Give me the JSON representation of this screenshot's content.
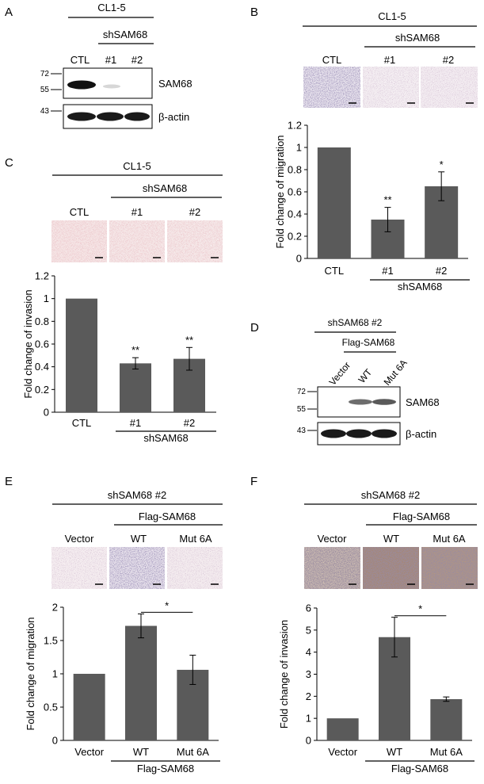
{
  "panelA": {
    "letter": "A",
    "cell_line": "CL1-5",
    "group": "shSAM68",
    "lanes": [
      "CTL",
      "#1",
      "#2"
    ],
    "markers_top": [
      "72",
      "55"
    ],
    "marker_bottom": "43",
    "protein_top": "SAM68",
    "protein_bottom": "β-actin"
  },
  "panelB": {
    "letter": "B",
    "cell_line": "CL1-5",
    "group": "shSAM68",
    "image_labels": [
      "CTL",
      "#1",
      "#2"
    ]
  },
  "panelC": {
    "letter": "C",
    "cell_line": "CL1-5",
    "group": "shSAM68",
    "image_labels": [
      "CTL",
      "#1",
      "#2"
    ]
  },
  "panelD": {
    "letter": "D",
    "group": "shSAM68 #2",
    "subgroup": "Flag-SAM68",
    "lanes": [
      "Vector",
      "WT",
      "Mut 6A"
    ],
    "markers_top": [
      "72",
      "55"
    ],
    "marker_bottom": "43",
    "protein_top": "SAM68",
    "protein_bottom": "β-actin"
  },
  "panelE": {
    "letter": "E",
    "group": "shSAM68 #2",
    "subgroup": "Flag-SAM68",
    "image_labels": [
      "Vector",
      "WT",
      "Mut 6A"
    ]
  },
  "panelF": {
    "letter": "F",
    "group": "shSAM68 #2",
    "subgroup": "Flag-SAM68",
    "image_labels": [
      "Vector",
      "WT",
      "Mut 6A"
    ]
  },
  "chart_data": [
    {
      "panel": "B",
      "type": "bar",
      "categories": [
        "CTL",
        "#1",
        "#2"
      ],
      "values": [
        1.0,
        0.35,
        0.65
      ],
      "errors": [
        0,
        0.11,
        0.13
      ],
      "significance": [
        "",
        "**",
        "*"
      ],
      "ylabel": "Fold change of migration",
      "ylim": [
        0,
        1.2
      ],
      "yticks": [
        "0",
        "0.2",
        "0.4",
        "0.6",
        "0.8",
        "1",
        "1.2"
      ],
      "group_label": "shSAM68",
      "bar_color": "#5a5a5a"
    },
    {
      "panel": "C",
      "type": "bar",
      "categories": [
        "CTL",
        "#1",
        "#2"
      ],
      "values": [
        1.0,
        0.43,
        0.47
      ],
      "errors": [
        0,
        0.05,
        0.1
      ],
      "significance": [
        "",
        "**",
        "**"
      ],
      "ylabel": "Fold change of invasion",
      "ylim": [
        0,
        1.2
      ],
      "yticks": [
        "0",
        "0.2",
        "0.4",
        "0.6",
        "0.8",
        "1",
        "1.2"
      ],
      "group_label": "shSAM68",
      "bar_color": "#5a5a5a"
    },
    {
      "panel": "E",
      "type": "bar",
      "categories": [
        "Vector",
        "WT",
        "Mut 6A"
      ],
      "values": [
        1.0,
        1.72,
        1.06
      ],
      "errors": [
        0.01,
        0.18,
        0.22
      ],
      "comparison": {
        "from": 1,
        "to": 2,
        "label": "*"
      },
      "ylabel": "Fold change of migration",
      "ylim": [
        0,
        2
      ],
      "yticks": [
        "0",
        "0.5",
        "1",
        "1.5",
        "2"
      ],
      "group_label": "Flag-SAM68",
      "bar_color": "#5a5a5a"
    },
    {
      "panel": "F",
      "type": "bar",
      "categories": [
        "Vector",
        "WT",
        "Mut 6A"
      ],
      "values": [
        1.0,
        4.68,
        1.87
      ],
      "errors": [
        0.01,
        0.9,
        0.1
      ],
      "comparison": {
        "from": 1,
        "to": 2,
        "label": "*"
      },
      "ylabel": "Fold change of invasion",
      "ylim": [
        0,
        6
      ],
      "yticks": [
        "0",
        "1",
        "2",
        "3",
        "4",
        "5",
        "6"
      ],
      "group_label": "Flag-SAM68",
      "bar_color": "#5a5a5a"
    }
  ]
}
